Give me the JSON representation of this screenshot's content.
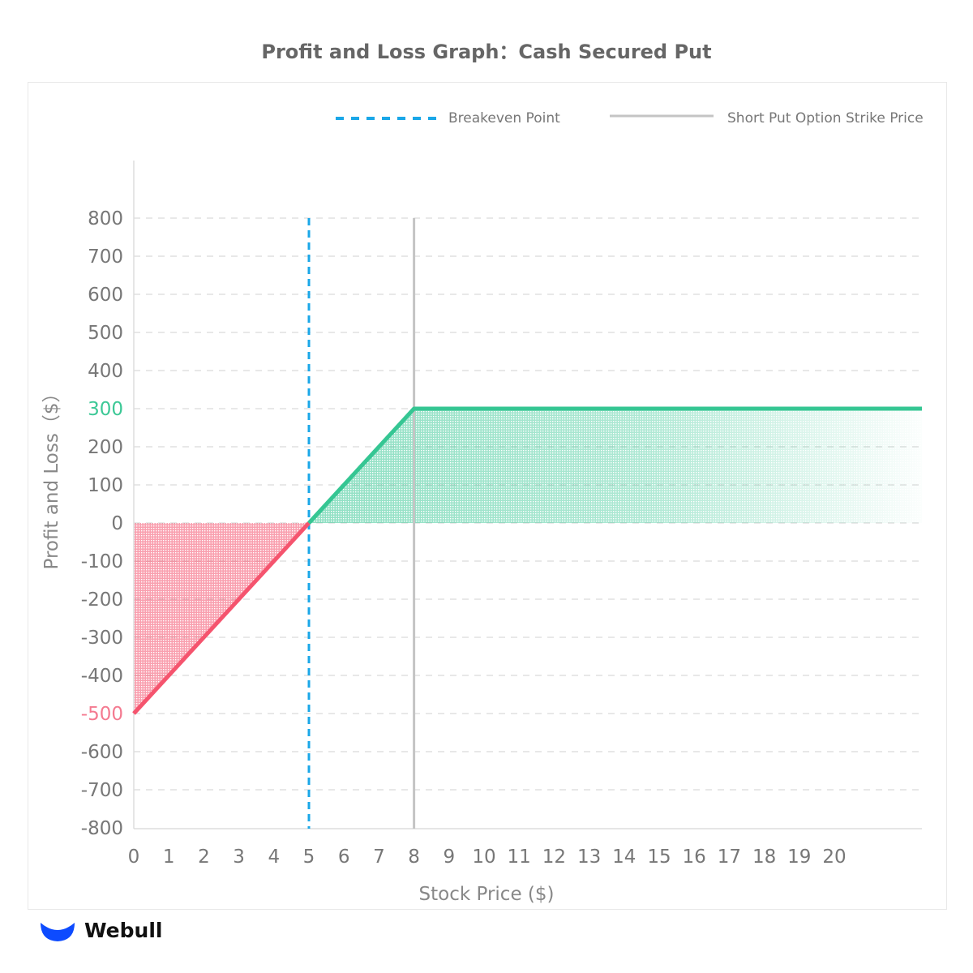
{
  "chart_data": {
    "type": "line",
    "title": "Profit and Loss Graph：Cash Secured Put",
    "xlabel": "Stock Price ($)",
    "ylabel": "Profit and Loss（$）",
    "xlim": [
      0,
      22.5
    ],
    "ylim": [
      -800,
      800
    ],
    "x_ticks": [
      0,
      1,
      2,
      3,
      4,
      5,
      6,
      7,
      8,
      9,
      10,
      11,
      12,
      13,
      14,
      15,
      16,
      17,
      18,
      19,
      20
    ],
    "y_ticks": [
      800,
      700,
      600,
      500,
      400,
      300,
      200,
      100,
      0,
      -100,
      -200,
      -300,
      -400,
      -500,
      -600,
      -700,
      -800
    ],
    "highlighted_y_ticks": {
      "300": "#3cc896",
      "-500": "#f47a90"
    },
    "grid": true,
    "legend_placement": "top-right",
    "series": [
      {
        "name": "",
        "x": [
          0,
          5,
          8,
          22.5
        ],
        "y": [
          -500,
          0,
          300,
          300
        ]
      }
    ],
    "vertical_lines": [
      {
        "name": "Breakeven Point",
        "x": 5,
        "style": "dashed",
        "color": "#1aa7e8"
      },
      {
        "name": "Short Put Option Strike Price",
        "x": 8,
        "style": "solid",
        "color": "#c4c4c4"
      }
    ],
    "colors": {
      "profit": "#35c693",
      "loss": "#f5546e",
      "text": "#777777"
    }
  },
  "brand": {
    "name": "Webull",
    "color": "#0d4bff"
  }
}
